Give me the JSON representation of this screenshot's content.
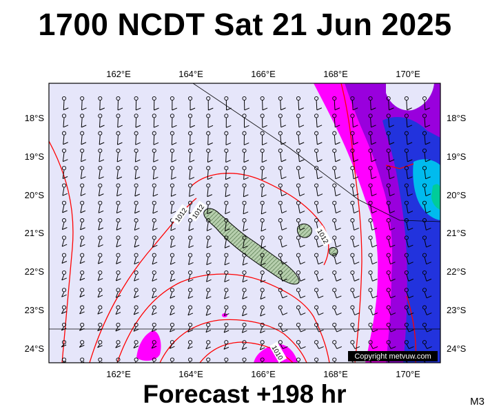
{
  "header": {
    "title": "1700 NCDT Sat 21 Jun 2025"
  },
  "footer": {
    "forecast_label": "Forecast +198 hr",
    "model_code": "M3"
  },
  "map": {
    "longitude_ticks": [
      "162°E",
      "164°E",
      "166°E",
      "168°E",
      "170°E"
    ],
    "latitude_ticks": [
      "18°S",
      "19°S",
      "20°S",
      "21°S",
      "22°S",
      "23°S",
      "24°S"
    ],
    "copyright": "Copyright metvuw.com",
    "isobar_labels": [
      "1012",
      "1012",
      "1012",
      "1010"
    ],
    "colors": {
      "background": "#e6e6fa",
      "isobar": "#ff0000",
      "rain_light": "#ff00ff",
      "rain_moderate": "#9900dd",
      "rain_heavy": "#2233dd",
      "rain_very_heavy": "#00bbee",
      "land": "#a8c4a0"
    }
  }
}
